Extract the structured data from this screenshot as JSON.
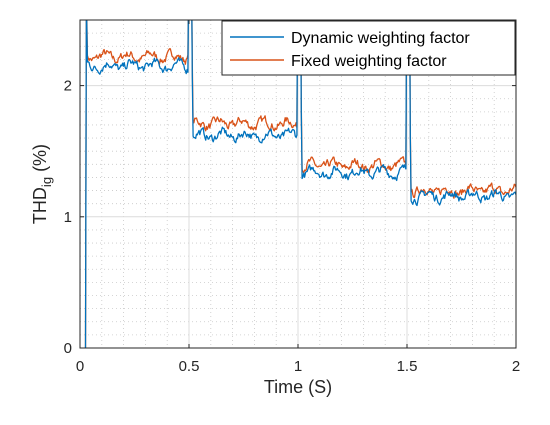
{
  "chart_data": {
    "type": "line",
    "xlabel": "Time (S)",
    "ylabel": {
      "main": "THD",
      "sub": "ig",
      "suffix": " (%)"
    },
    "xlim": [
      0,
      2
    ],
    "ylim": [
      0,
      2.5
    ],
    "xticks": [
      0,
      0.5,
      1,
      1.5,
      2
    ],
    "xtick_labels": [
      "0",
      "0.5",
      "1",
      "1.5",
      "2"
    ],
    "yticks": [
      0,
      1,
      2
    ],
    "ytick_labels": [
      "0",
      "1",
      "2"
    ],
    "grid": "major and minor, dotted",
    "legend_position": "top-right",
    "series": [
      {
        "name": "Dynamic weighting factor",
        "color": "#0072BD",
        "segments": [
          {
            "x_start": 0.03,
            "x_end": 0.495,
            "level": 2.15
          },
          {
            "x_start": 0.515,
            "x_end": 0.995,
            "level": 1.62
          },
          {
            "x_start": 1.015,
            "x_end": 1.495,
            "level": 1.34
          },
          {
            "x_start": 1.515,
            "x_end": 2.0,
            "level": 1.16
          }
        ]
      },
      {
        "name": "Fixed weighting factor",
        "color": "#D95319",
        "segments": [
          {
            "x_start": 0.03,
            "x_end": 0.495,
            "level": 2.22
          },
          {
            "x_start": 0.515,
            "x_end": 0.995,
            "level": 1.71
          },
          {
            "x_start": 1.015,
            "x_end": 1.495,
            "level": 1.39
          },
          {
            "x_start": 1.515,
            "x_end": 2.0,
            "level": 1.2
          }
        ]
      }
    ]
  }
}
